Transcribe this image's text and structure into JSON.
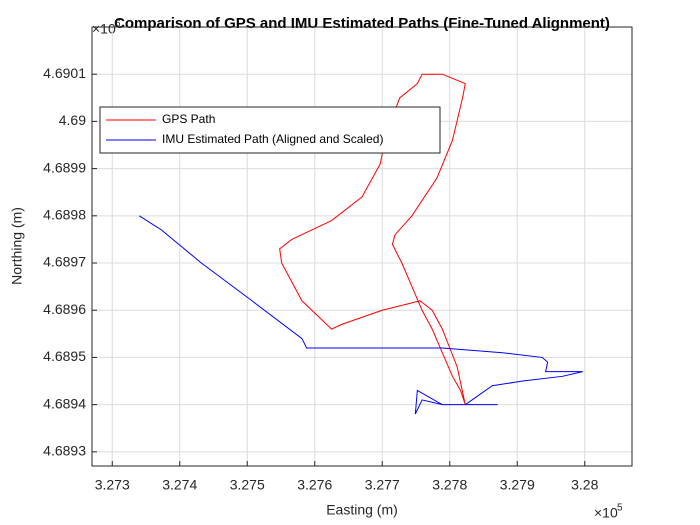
{
  "chart_data": {
    "type": "line",
    "title": "Comparison of GPS and IMU Estimated Paths (Fine-Tuned Alignment)",
    "x_label": "Easting (m)",
    "y_label": "Northing (m)",
    "x_scale": {
      "base": "×10",
      "exponent": "5"
    },
    "y_scale": {
      "base": "×10",
      "exponent": "6"
    },
    "xlim": [
      3.2727,
      3.2807
    ],
    "ylim": [
      4.68927,
      4.6902
    ],
    "xticks": [
      3.273,
      3.274,
      3.275,
      3.276,
      3.277,
      3.278,
      3.279,
      3.28
    ],
    "yticks": [
      4.6893,
      4.6894,
      4.6895,
      4.6896,
      4.6897,
      4.6898,
      4.6899,
      4.69,
      4.6901
    ],
    "grid": true,
    "legend": "upper left",
    "series": [
      {
        "name": "GPS Path",
        "color": "#ff0000",
        "x": [
          3.27823,
          3.27811,
          3.27789,
          3.27774,
          3.27756,
          3.277,
          3.2764,
          3.27625,
          3.27581,
          3.27551,
          3.27548,
          3.27566,
          3.27625,
          3.2767,
          3.27697,
          3.27707,
          3.27726,
          3.27752,
          3.27759,
          3.27771,
          3.27789,
          3.27823,
          3.27819,
          3.27804,
          3.27781,
          3.27744,
          3.27719,
          3.27715,
          3.27729,
          3.27747,
          3.27759,
          3.27774,
          3.27789,
          3.27804,
          3.27816,
          3.27823
        ],
        "values": [
          4.6894,
          4.68948,
          4.68956,
          4.6896,
          4.68962,
          4.6896,
          4.68957,
          4.68956,
          4.68962,
          4.6897,
          4.68973,
          4.68975,
          4.68979,
          4.68984,
          4.68991,
          4.68998,
          4.69005,
          4.69008,
          4.6901,
          4.6901,
          4.6901,
          4.69008,
          4.69005,
          4.68996,
          4.68988,
          4.6898,
          4.68976,
          4.68974,
          4.6897,
          4.68964,
          4.6896,
          4.68956,
          4.68951,
          4.68946,
          4.68943,
          4.6894
        ]
      },
      {
        "name": "IMU Estimated Path (Aligned and Scaled)",
        "color": "#0000ff",
        "x": [
          3.2734,
          3.27373,
          3.27432,
          3.27507,
          3.27581,
          3.27588,
          3.27611,
          3.27759,
          3.27789,
          3.27878,
          3.27937,
          3.27945,
          3.27942,
          3.27997,
          3.27967,
          3.27908,
          3.27863,
          3.27833,
          3.27823,
          3.27789,
          3.27759,
          3.27749,
          3.27752,
          3.27789,
          3.27871
        ],
        "values": [
          4.6898,
          4.68977,
          4.6897,
          4.68962,
          4.68954,
          4.68952,
          4.68952,
          4.68952,
          4.68952,
          4.68951,
          4.6895,
          4.68949,
          4.68947,
          4.68947,
          4.68946,
          4.68945,
          4.68944,
          4.68941,
          4.6894,
          4.6894,
          4.68941,
          4.68938,
          4.68943,
          4.6894,
          4.6894
        ]
      }
    ]
  }
}
